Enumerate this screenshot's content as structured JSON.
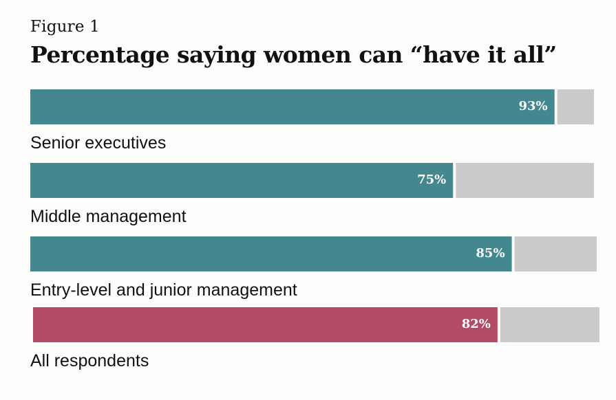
{
  "figure_label": "Figure 1",
  "chart_data": {
    "type": "bar",
    "orientation": "horizontal",
    "title": "Percentage saying women can “have it all”",
    "xlim": [
      0,
      100
    ],
    "grid": false,
    "legend": "none",
    "categories": [
      "Senior executives",
      "Middle management",
      "Entry-level and junior management",
      "All respondents"
    ],
    "values": [
      93,
      75,
      85,
      82
    ],
    "value_labels": [
      "93%",
      "75%",
      "85%",
      "82%"
    ],
    "bar_colors": [
      "#44878f",
      "#44878f",
      "#44878f",
      "#b34b65"
    ],
    "track_color": "#cbcbcb"
  }
}
